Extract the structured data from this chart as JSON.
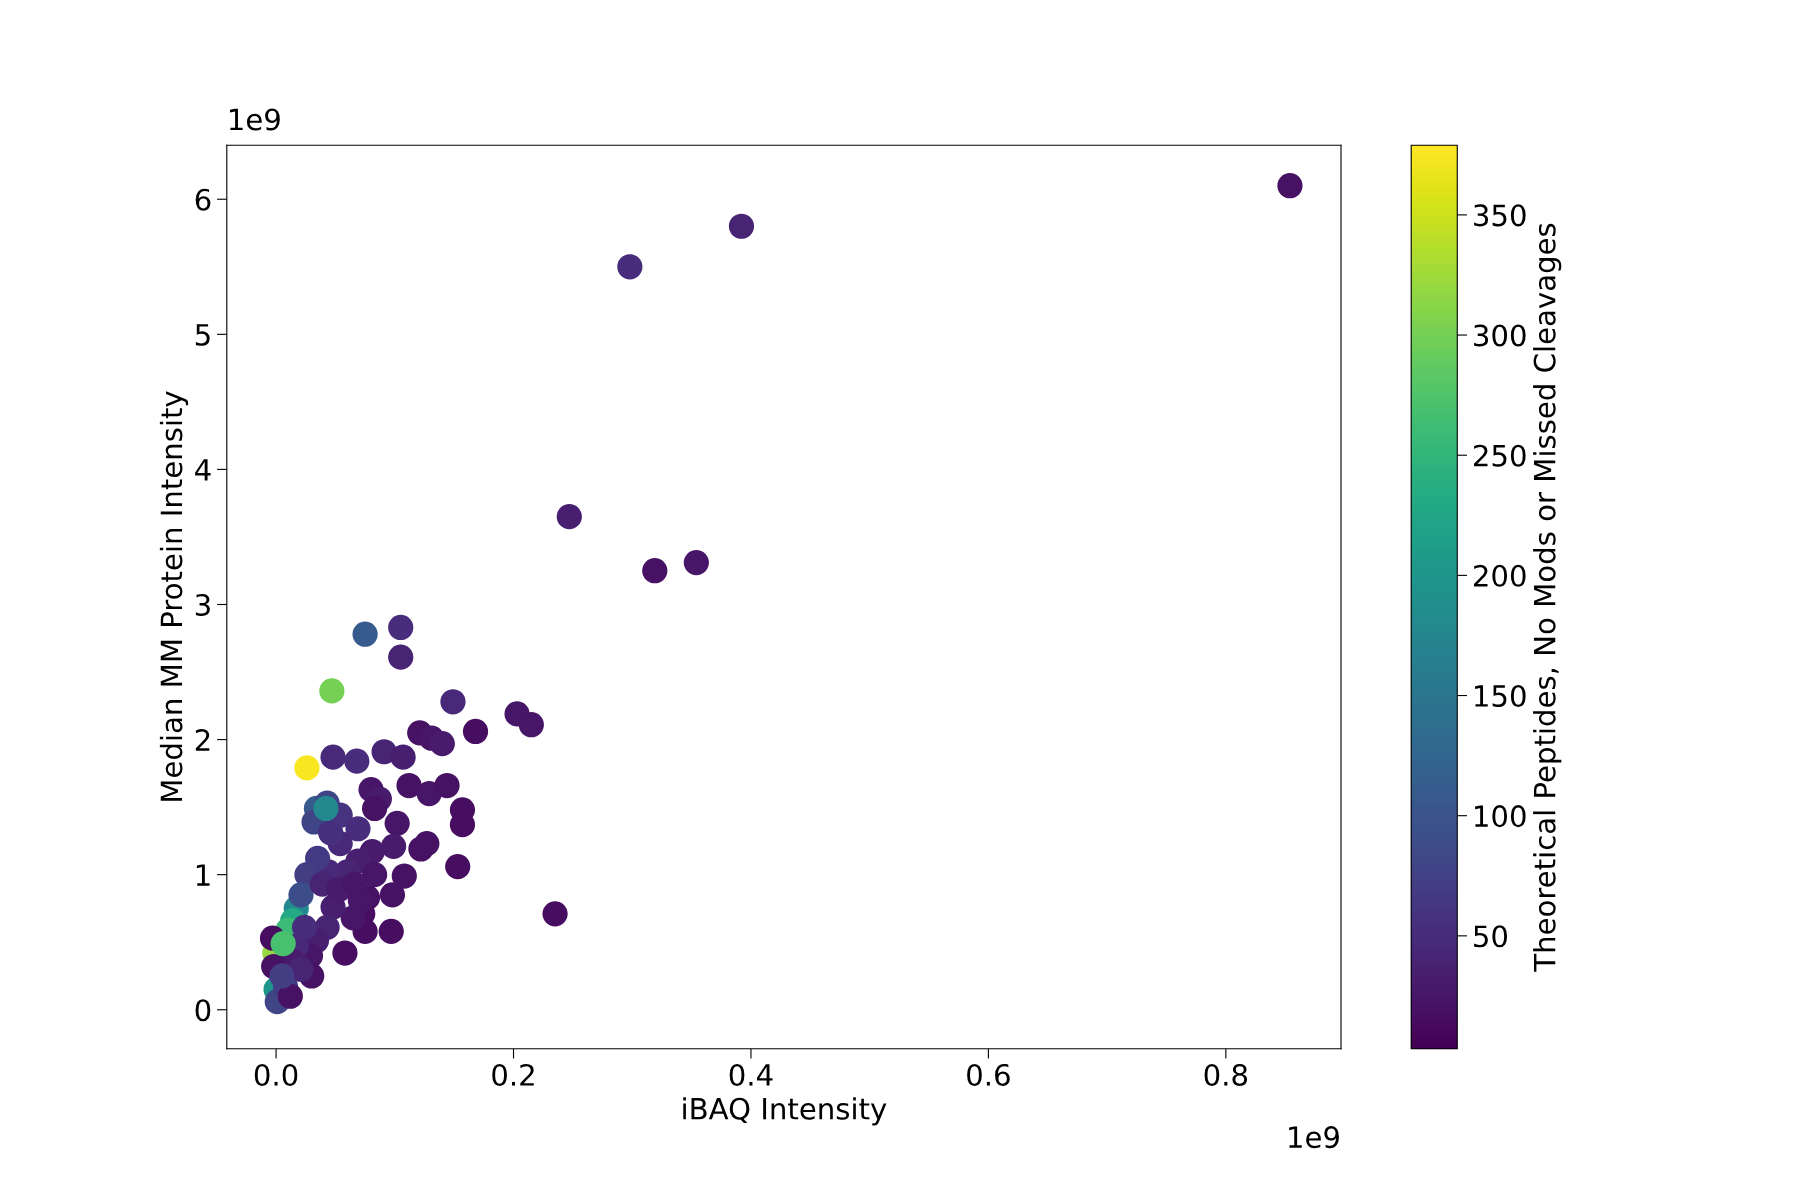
{
  "chart_data": {
    "type": "scatter",
    "xlabel": "iBAQ Intensity",
    "ylabel": "Median MM Protein Intensity",
    "clabel": "Theoretical Peptides, No Mods or Missed Cleavages",
    "annotations": [
      "1e9",
      "1e9"
    ],
    "xlim": [
      -0.0415,
      0.897
    ],
    "ylim": [
      -0.289,
      6.4
    ],
    "xticks": [
      {
        "value": 0,
        "label": "0.0"
      },
      0.2,
      0.4,
      0.6,
      0.8
    ],
    "yticks": [
      0,
      1,
      2,
      3,
      4,
      5,
      6
    ],
    "clim": [
      3,
      379
    ],
    "cticks": [
      50,
      100,
      150,
      200,
      250,
      300,
      350
    ],
    "grid": false,
    "x": [
      0.854,
      0.392,
      0.298,
      0.247,
      0.319,
      0.354,
      0.235,
      0.075,
      0.105,
      0.105,
      0.047,
      0.026,
      0.149,
      0.203,
      0.215,
      0.168,
      0.121,
      0.131,
      0.14,
      0.048,
      0.068,
      0.091,
      0.107,
      0.08,
      0.087,
      0.112,
      0.129,
      0.144,
      0.157,
      0.157,
      0.083,
      0.153,
      0.127,
      0.122,
      0.102,
      0.099,
      0.108,
      0.098,
      0.097,
      0.034,
      0.043,
      0.032,
      0.054,
      0.069,
      0.054,
      0.046,
      0.081,
      0.069,
      0.06,
      0.044,
      0.035,
      0.026,
      0.083,
      0.077,
      0.073,
      0.075,
      0.058,
      0.065,
      0.048,
      0.043,
      0.034,
      0.029,
      0.03,
      0.017,
      0.021,
      0.014,
      0.01,
      -0.001,
      -0.003,
      0.017,
      0.024,
      0.014,
      0.0,
      0.001,
      0.008,
      0.012,
      0.021,
      -0.002,
      0.039,
      0.053,
      0.066,
      0.071,
      0.042,
      0.006,
      0.005
    ],
    "values": [
      6.1,
      5.8,
      5.5,
      3.65,
      3.25,
      3.31,
      0.71,
      2.78,
      2.83,
      2.61,
      2.36,
      1.79,
      2.28,
      2.19,
      2.11,
      2.06,
      2.05,
      2.01,
      1.97,
      1.87,
      1.84,
      1.91,
      1.87,
      1.63,
      1.56,
      1.66,
      1.6,
      1.66,
      1.48,
      1.37,
      1.49,
      1.06,
      1.23,
      1.19,
      1.38,
      1.21,
      0.99,
      0.85,
      0.58,
      1.49,
      1.53,
      1.39,
      1.44,
      1.34,
      1.23,
      1.31,
      1.17,
      1.1,
      1.02,
      1.02,
      1.12,
      1.0,
      1.0,
      0.83,
      0.71,
      0.58,
      0.42,
      0.68,
      0.76,
      0.61,
      0.51,
      0.4,
      0.25,
      0.75,
      0.85,
      0.66,
      0.59,
      0.42,
      0.53,
      0.47,
      0.61,
      0.36,
      0.15,
      0.06,
      0.17,
      0.1,
      0.3,
      0.32,
      0.93,
      0.89,
      0.93,
      0.81,
      1.49,
      0.49,
      0.25
    ],
    "cvalues": [
      20,
      40,
      50,
      35,
      20,
      25,
      15,
      110,
      50,
      40,
      300,
      375,
      45,
      25,
      25,
      15,
      20,
      25,
      30,
      45,
      50,
      40,
      35,
      25,
      30,
      20,
      25,
      20,
      15,
      15,
      20,
      15,
      20,
      20,
      25,
      30,
      20,
      20,
      15,
      110,
      80,
      80,
      60,
      50,
      45,
      55,
      30,
      35,
      40,
      45,
      65,
      70,
      25,
      20,
      15,
      15,
      15,
      25,
      35,
      40,
      35,
      25,
      20,
      180,
      90,
      230,
      260,
      320,
      15,
      45,
      50,
      30,
      200,
      80,
      70,
      20,
      40,
      20,
      40,
      30,
      25,
      25,
      180,
      270,
      70
    ]
  }
}
